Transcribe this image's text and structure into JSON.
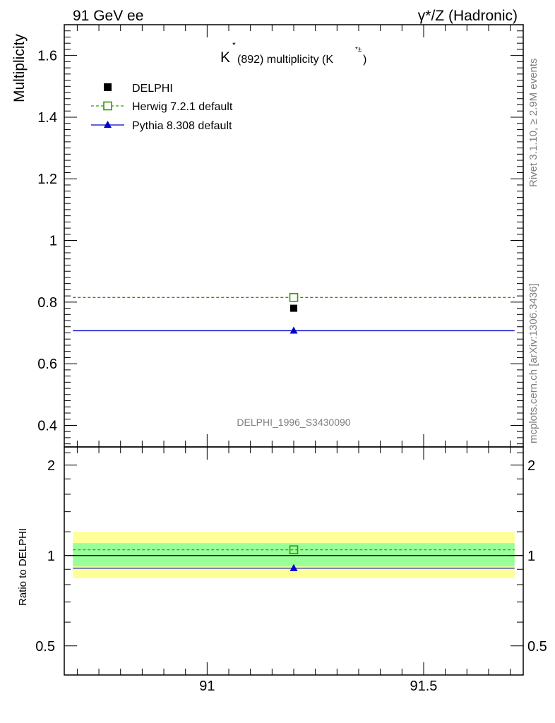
{
  "header": {
    "left_label": "91 GeV ee",
    "right_label": "γ*/Z (Hadronic)"
  },
  "side_labels": {
    "rivet": "Rivet 3.1.10, ≥ 2.9M events",
    "mcplots": "mcplots.cern.ch [arXiv:1306.3436]"
  },
  "colors": {
    "data": "#000000",
    "herwig": "#339900",
    "pythia": "#0000cc",
    "band_outer": "#ffff99",
    "band_inner": "#99ff99",
    "side_text": "#808080"
  },
  "chart_data": [
    {
      "type": "scatter",
      "panel": "main",
      "title_main": "K",
      "title_sup": "*",
      "title_rest": "(892) multiplicity (K",
      "title_sup2": "*±",
      "title_end": ")",
      "analysis_id": "DELPHI_1996_S3430090",
      "ylabel": "Multiplicity",
      "xlim": [
        90.67,
        91.73
      ],
      "ylim": [
        0.33,
        1.7
      ],
      "x_ticks": [
        91,
        91.5
      ],
      "y_ticks": [
        0.4,
        0.6,
        0.8,
        1,
        1.2,
        1.4,
        1.6
      ],
      "y_tick_labels": [
        "0.4",
        "0.6",
        "0.8",
        "1",
        "1.2",
        "1.4",
        "1.6"
      ],
      "legend_position": "top-left",
      "series": [
        {
          "name": "DELPHI",
          "style": "marker",
          "x": [
            91.2
          ],
          "y": [
            0.78
          ]
        },
        {
          "name": "Herwig 7.2.1 default",
          "style": "dashed-line-open-square",
          "x": [
            91.2
          ],
          "y": [
            0.815
          ],
          "xrange": [
            90.69,
            91.71
          ]
        },
        {
          "name": "Pythia 8.308 default",
          "style": "line-triangle",
          "x": [
            91.2
          ],
          "y": [
            0.707
          ],
          "xrange": [
            90.69,
            91.71
          ]
        }
      ]
    },
    {
      "type": "scatter",
      "panel": "ratio",
      "ylabel": "Ratio to DELPHI",
      "xlim": [
        90.67,
        91.73
      ],
      "ylim": [
        0.4,
        2.3
      ],
      "log_y": true,
      "x_ticks": [
        91,
        91.5
      ],
      "x_tick_labels": [
        "91",
        "91.5"
      ],
      "y_ticks": [
        0.5,
        1,
        2
      ],
      "y_tick_labels": [
        "0.5",
        "1",
        "2"
      ],
      "bands": [
        {
          "kind": "outer",
          "ymin": 0.84,
          "ymax": 1.2
        },
        {
          "kind": "inner",
          "ymin": 0.92,
          "ymax": 1.1
        }
      ],
      "series": [
        {
          "name": "Herwig 7.2.1 default",
          "x": [
            91.2
          ],
          "y": [
            1.045
          ]
        },
        {
          "name": "Pythia 8.308 default",
          "x": [
            91.2
          ],
          "y": [
            0.907
          ]
        }
      ]
    }
  ]
}
